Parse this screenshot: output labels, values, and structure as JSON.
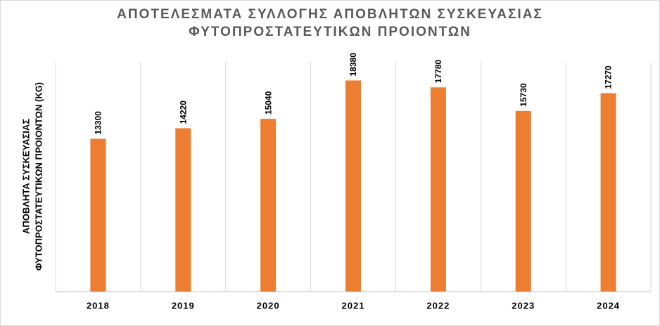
{
  "chart_data": {
    "type": "bar",
    "title": [
      "ΑΠΟΤΕΛΕΣΜΑΤΑ ΣΥΛΛΟΓΗΣ ΑΠΟΒΛΗΤΩΝ ΣΥΣΚΕΥΑΣΙΑΣ",
      "ΦΥΤΟΠΡΟΣΤΑΤΕΥΤΙΚΩΝ ΠΡΟΙΟΝΤΩΝ"
    ],
    "y_label": [
      "ΑΠΟΒΛΗΤΑ ΣΥΣΚΕΥΑΣΙΑΣ",
      "ΦΥΤΟΠΡΟΣΤΑΤΕΥΤΙΚΩΝ ΠΡΟΙΟΝΤΩΝ (KG)"
    ],
    "categories": [
      "2018",
      "2019",
      "2020",
      "2021",
      "2022",
      "2023",
      "2024"
    ],
    "values": [
      13300,
      14220,
      15040,
      18380,
      17780,
      15730,
      17270
    ],
    "color": "#ed7d31",
    "ylim": [
      0,
      20000
    ],
    "grid": true
  }
}
